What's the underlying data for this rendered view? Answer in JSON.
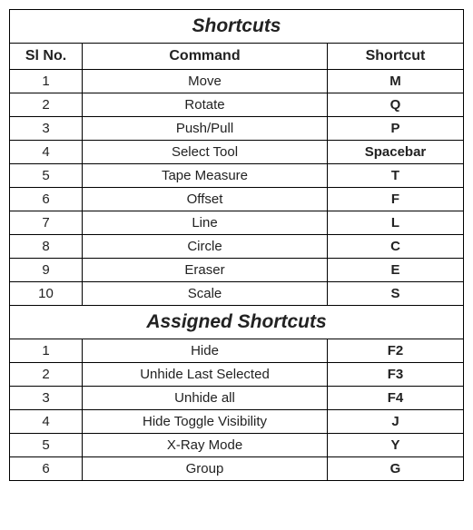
{
  "sections": {
    "shortcuts": {
      "title": "Shortcuts",
      "columns": [
        "Sl No.",
        "Command",
        "Shortcut"
      ],
      "rows": [
        {
          "sl": "1",
          "command": "Move",
          "shortcut": "M"
        },
        {
          "sl": "2",
          "command": "Rotate",
          "shortcut": "Q"
        },
        {
          "sl": "3",
          "command": "Push/Pull",
          "shortcut": "P"
        },
        {
          "sl": "4",
          "command": "Select Tool",
          "shortcut": "Spacebar"
        },
        {
          "sl": "5",
          "command": "Tape Measure",
          "shortcut": "T"
        },
        {
          "sl": "6",
          "command": "Offset",
          "shortcut": "F"
        },
        {
          "sl": "7",
          "command": "Line",
          "shortcut": "L"
        },
        {
          "sl": "8",
          "command": "Circle",
          "shortcut": "C"
        },
        {
          "sl": "9",
          "command": "Eraser",
          "shortcut": "E"
        },
        {
          "sl": "10",
          "command": "Scale",
          "shortcut": "S"
        }
      ]
    },
    "assigned": {
      "title": "Assigned Shortcuts",
      "rows": [
        {
          "sl": "1",
          "command": "Hide",
          "shortcut": "F2"
        },
        {
          "sl": "2",
          "command": "Unhide Last Selected",
          "shortcut": "F3"
        },
        {
          "sl": "3",
          "command": "Unhide all",
          "shortcut": "F4"
        },
        {
          "sl": "4",
          "command": "Hide Toggle Visibility",
          "shortcut": "J"
        },
        {
          "sl": "5",
          "command": "X-Ray Mode",
          "shortcut": "Y"
        },
        {
          "sl": "6",
          "command": "Group",
          "shortcut": "G"
        }
      ]
    }
  },
  "style": {
    "type": "table",
    "border_color": "#000000",
    "background_color": "#ffffff",
    "text_color": "#222222",
    "title_fontsize": 21,
    "header_fontsize": 16,
    "cell_fontsize": 15,
    "title_font_style": "italic bold",
    "col_widths_pct": [
      16,
      54,
      30
    ]
  }
}
